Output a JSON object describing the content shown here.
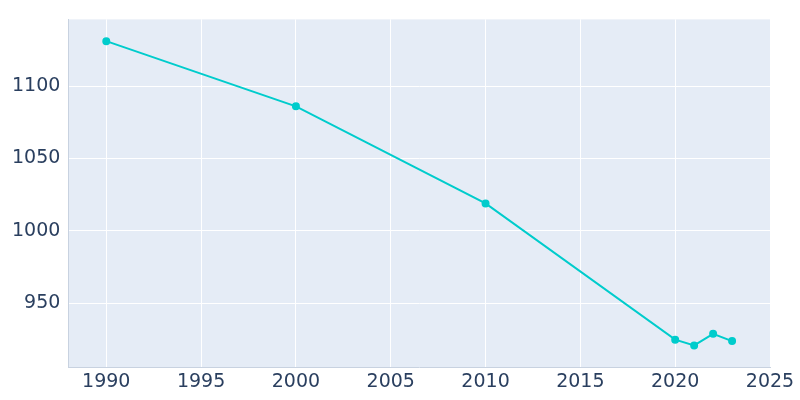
{
  "chart_data": {
    "type": "line",
    "x": [
      1990,
      2000,
      2010,
      2020,
      2021,
      2022,
      2023
    ],
    "values": [
      1131,
      1086,
      1019,
      925,
      921,
      929,
      924
    ],
    "color": "#00cccc",
    "marker": "circle",
    "xlim": [
      1988,
      2025
    ],
    "xticks": [
      1990,
      1995,
      2000,
      2005,
      2010,
      2015,
      2020,
      2025
    ],
    "ylim": [
      906,
      1146
    ],
    "yticks": [
      950,
      1000,
      1050,
      1100
    ],
    "grid": true
  }
}
